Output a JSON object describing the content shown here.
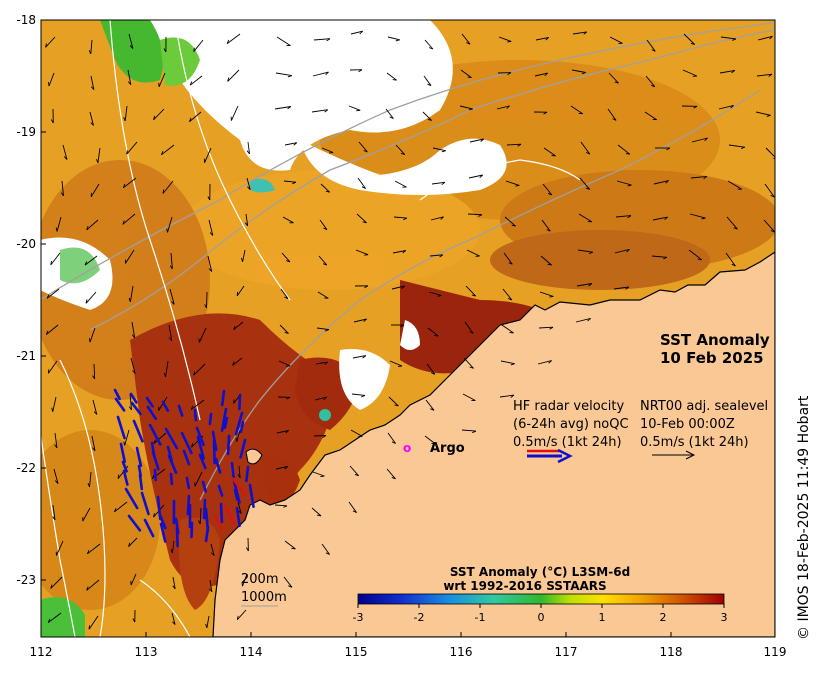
{
  "map": {
    "title_line1": "SST Anomaly",
    "title_line2": "10 Feb 2025",
    "credit": "© IMOS 18-Feb-2025 11:49 Hobart",
    "x_ticks": [
      "112",
      "113",
      "114",
      "115",
      "116",
      "117",
      "118",
      "119"
    ],
    "y_ticks": [
      "-18",
      "-19",
      "-20",
      "-21",
      "-22",
      "-23"
    ],
    "x_range": [
      112,
      119
    ],
    "y_range": [
      -23.5,
      -18
    ]
  },
  "legend": {
    "hf_line1": "HF radar velocity",
    "hf_line2": "(6-24h avg) noQC",
    "hf_line3": "0.5m/s (1kt 24h)",
    "sl_line1": "NRT00 adj. sealevel",
    "sl_line2": "10-Feb 00:00Z",
    "sl_line3": "0.5m/s (1kt 24h)",
    "argo_marker": "o",
    "argo_label": "Argo"
  },
  "colorbar": {
    "title_line1": "SST Anomaly (°C) L3SM-6d",
    "title_line2": "wrt 1992-2016 SSTAARS",
    "ticks": [
      "-3",
      "-2",
      "-1",
      "0",
      "1",
      "2",
      "3"
    ],
    "range": [
      -3,
      3
    ]
  },
  "scale": {
    "isobath1": "200m",
    "isobath2": "1000m"
  },
  "colors": {
    "land": "#f9c895",
    "ocean_warm": "#e8a21a",
    "ocean_hot": "#a0280e",
    "hf_vectors": "#1010cc",
    "argo": "#ff00ff"
  }
}
